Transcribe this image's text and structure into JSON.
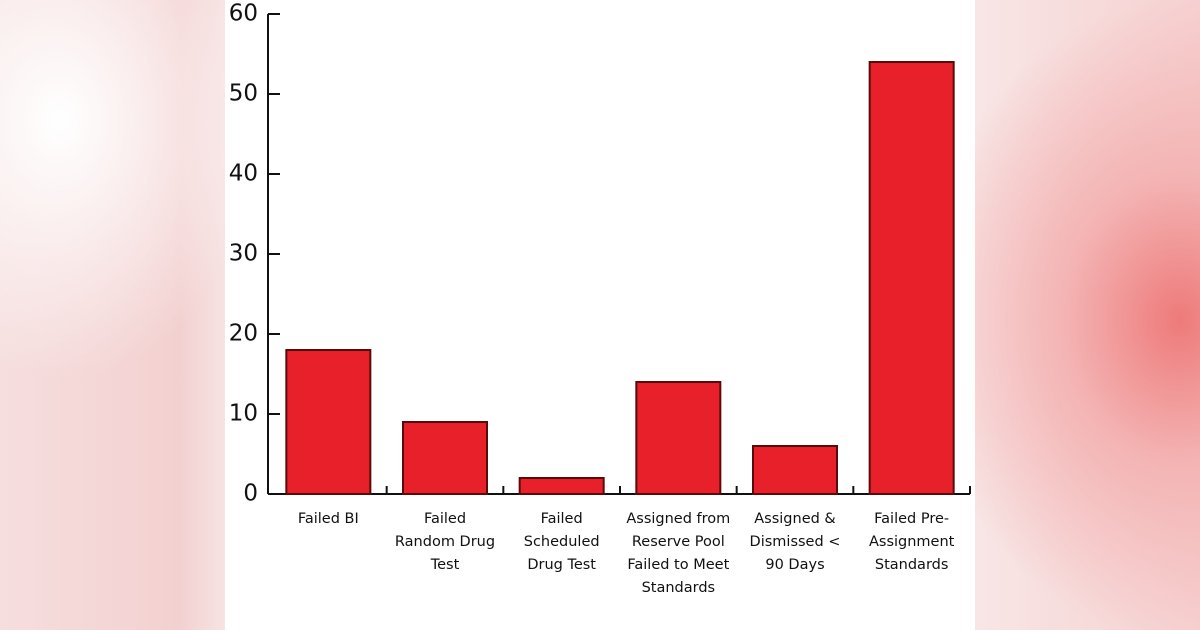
{
  "chart_data": {
    "type": "bar",
    "categories": [
      "Failed BI",
      "Failed Random Drug Test",
      "Failed Scheduled Drug Test",
      "Assigned from Reserve Pool Failed to Meet Standards",
      "Assigned & Dismissed < 90 Days",
      "Failed Pre-Assignment Standards"
    ],
    "values": [
      18,
      9,
      2,
      14,
      6,
      54
    ],
    "color": "#e8202a",
    "ylim": [
      0,
      60
    ],
    "yticks": [
      0,
      10,
      20,
      30,
      40,
      50,
      60
    ],
    "grid": false
  }
}
